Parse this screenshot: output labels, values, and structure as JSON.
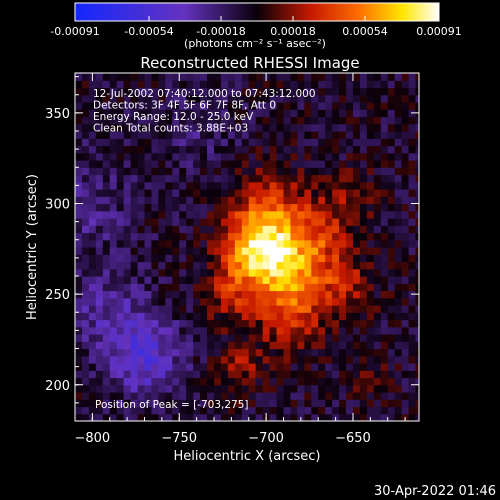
{
  "colorbar": {
    "tick_labels": [
      "-0.00091",
      "-0.00054",
      "-0.00018",
      "0.00018",
      "0.00054",
      "0.00091"
    ],
    "tick_values": [
      -0.00091,
      -0.00054,
      -0.00018,
      0.00018,
      0.00054,
      0.00091
    ],
    "range": [
      -0.00091,
      0.00091
    ],
    "unit_label": "(photons cm⁻² s⁻¹ asec⁻²)"
  },
  "chart_data": {
    "type": "heatmap",
    "title": "Reconstructed RHESSI Image",
    "xlabel": "Heliocentric X (arcsec)",
    "ylabel": "Heliocentric Y (arcsec)",
    "xlim": [
      -810,
      -612
    ],
    "ylim": [
      180,
      372
    ],
    "x_ticks": [
      -800,
      -750,
      -700,
      -650
    ],
    "x_tick_labels": [
      "−800",
      "−750",
      "−700",
      "−650"
    ],
    "y_ticks": [
      200,
      250,
      300,
      350
    ],
    "y_tick_labels": [
      "200",
      "250",
      "300",
      "350"
    ],
    "info_lines": [
      "12-Jul-2002 07:40:12.000 to 07:43:12.000",
      "Detectors: 3F 4F 5F 6F 7F 8F, Att 0",
      "Energy Range: 12.0 - 25.0 keV",
      "Clean     Total counts: 3.88E+03"
    ],
    "peak_label": "Position of Peak = [-703,275]",
    "peak": [
      -703,
      275
    ],
    "grid_step": 4,
    "sources": [
      {
        "x": -703,
        "y": 275,
        "sigma": 14,
        "amp": 0.0008
      },
      {
        "x": -683,
        "y": 262,
        "sigma": 14,
        "amp": 0.00045
      },
      {
        "x": -698,
        "y": 300,
        "sigma": 15,
        "amp": 0.00034
      },
      {
        "x": -668,
        "y": 285,
        "sigma": 13,
        "amp": 0.0003
      },
      {
        "x": -686,
        "y": 236,
        "sigma": 13,
        "amp": 0.00032
      },
      {
        "x": -720,
        "y": 250,
        "sigma": 12,
        "amp": 0.00028
      },
      {
        "x": -654,
        "y": 255,
        "sigma": 12,
        "amp": 0.00026
      },
      {
        "x": -650,
        "y": 305,
        "sigma": 10,
        "amp": 0.00018
      },
      {
        "x": -715,
        "y": 210,
        "sigma": 10,
        "amp": 0.00024
      },
      {
        "x": -642,
        "y": 205,
        "sigma": 9,
        "amp": 0.00015
      },
      {
        "x": -770,
        "y": 215,
        "sigma": 15,
        "amp": -0.0004
      },
      {
        "x": -790,
        "y": 240,
        "sigma": 16,
        "amp": -0.00022
      },
      {
        "x": -805,
        "y": 300,
        "sigma": 20,
        "amp": -0.00018
      },
      {
        "x": -740,
        "y": 340,
        "sigma": 16,
        "amp": -0.00012
      }
    ],
    "background": -6e-05
  },
  "timestamp": "30-Apr-2022 01:46"
}
